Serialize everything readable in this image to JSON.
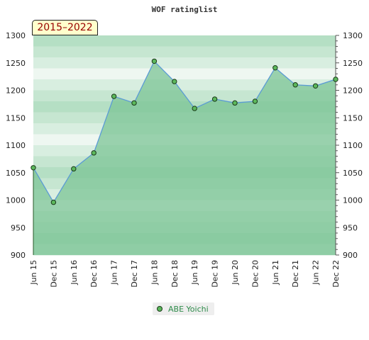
{
  "chart_data": {
    "type": "area",
    "title": "WOF ratinglist",
    "range_label": "2015–2022",
    "categories": [
      "Jun 15",
      "Dec 15",
      "Jun 16",
      "Dec 16",
      "Jun 17",
      "Dec 17",
      "Jun 18",
      "Dec 18",
      "Jun 19",
      "Dec 19",
      "Jun 20",
      "Dec 20",
      "Jun 21",
      "Dec 21",
      "Jun 22",
      "Dec 22"
    ],
    "series": [
      {
        "name": "ABE Yoichi",
        "values": [
          1059,
          996,
          1057,
          1086,
          1189,
          1177,
          1253,
          1216,
          1167,
          1184,
          1177,
          1180,
          1241,
          1210,
          1208,
          1220
        ]
      }
    ],
    "ylim": [
      900,
      1300
    ],
    "yticks": [
      900,
      950,
      1000,
      1050,
      1100,
      1150,
      1200,
      1250,
      1300
    ],
    "legend_position": "bottom-center",
    "colors": {
      "line": "#5b9bd5",
      "marker": "#5cb85c",
      "area": "#7cc495",
      "band_dark": "#b5dfc4",
      "band_light": "#eef7f1"
    }
  }
}
